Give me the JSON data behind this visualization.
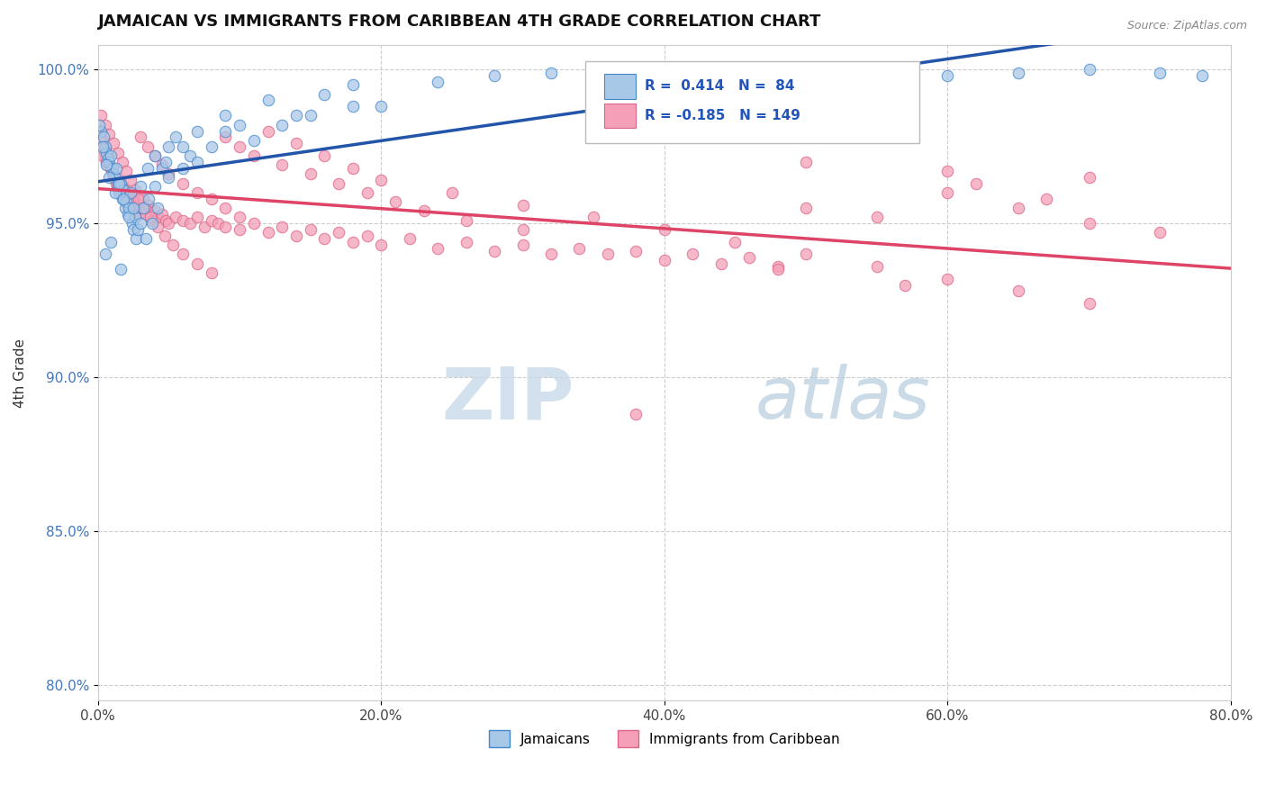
{
  "title": "JAMAICAN VS IMMIGRANTS FROM CARIBBEAN 4TH GRADE CORRELATION CHART",
  "source_text": "Source: ZipAtlas.com",
  "ylabel": "4th Grade",
  "xlim": [
    0.0,
    0.8
  ],
  "ylim": [
    0.795,
    1.008
  ],
  "xticks": [
    0.0,
    0.2,
    0.4,
    0.6,
    0.8
  ],
  "xticklabels": [
    "0.0%",
    "20.0%",
    "40.0%",
    "60.0%",
    "80.0%"
  ],
  "yticks": [
    0.8,
    0.85,
    0.9,
    0.95,
    1.0
  ],
  "yticklabels": [
    "80.0%",
    "85.0%",
    "90.0%",
    "95.0%",
    "100.0%"
  ],
  "blue_color": "#A8C8E8",
  "pink_color": "#F4A0B8",
  "blue_line_color": "#2255AA",
  "pink_line_color": "#DD4466",
  "blue_edge_color": "#4488CC",
  "pink_edge_color": "#DD6688",
  "legend_R_blue": "0.414",
  "legend_N_blue": "84",
  "legend_R_pink": "-0.185",
  "legend_N_pink": "149",
  "title_fontsize": 13,
  "marker_size": 9,
  "blue_scatter_x": [
    0.002,
    0.004,
    0.005,
    0.006,
    0.007,
    0.008,
    0.009,
    0.01,
    0.011,
    0.012,
    0.013,
    0.014,
    0.015,
    0.016,
    0.017,
    0.018,
    0.019,
    0.02,
    0.021,
    0.022,
    0.023,
    0.024,
    0.025,
    0.026,
    0.027,
    0.028,
    0.03,
    0.032,
    0.034,
    0.036,
    0.038,
    0.04,
    0.042,
    0.045,
    0.048,
    0.05,
    0.055,
    0.06,
    0.065,
    0.07,
    0.08,
    0.09,
    0.1,
    0.12,
    0.14,
    0.16,
    0.18,
    0.2,
    0.24,
    0.28,
    0.32,
    0.36,
    0.4,
    0.45,
    0.5,
    0.55,
    0.6,
    0.65,
    0.7,
    0.75,
    0.78,
    0.001,
    0.003,
    0.006,
    0.008,
    0.012,
    0.015,
    0.018,
    0.022,
    0.025,
    0.03,
    0.035,
    0.04,
    0.05,
    0.06,
    0.07,
    0.09,
    0.11,
    0.13,
    0.15,
    0.18,
    0.005,
    0.009,
    0.016
  ],
  "blue_scatter_y": [
    0.98,
    0.978,
    0.975,
    0.973,
    0.971,
    0.97,
    0.972,
    0.968,
    0.966,
    0.965,
    0.968,
    0.962,
    0.96,
    0.963,
    0.958,
    0.961,
    0.955,
    0.957,
    0.953,
    0.955,
    0.96,
    0.95,
    0.948,
    0.952,
    0.945,
    0.948,
    0.95,
    0.955,
    0.945,
    0.958,
    0.95,
    0.962,
    0.955,
    0.968,
    0.97,
    0.975,
    0.978,
    0.968,
    0.972,
    0.98,
    0.975,
    0.985,
    0.982,
    0.99,
    0.985,
    0.992,
    0.995,
    0.988,
    0.996,
    0.998,
    0.999,
    0.997,
    0.998,
    0.996,
    0.999,
    1.0,
    0.998,
    0.999,
    1.0,
    0.999,
    0.998,
    0.982,
    0.975,
    0.969,
    0.965,
    0.96,
    0.963,
    0.958,
    0.952,
    0.955,
    0.962,
    0.968,
    0.972,
    0.965,
    0.975,
    0.97,
    0.98,
    0.977,
    0.982,
    0.985,
    0.988,
    0.94,
    0.944,
    0.935
  ],
  "pink_scatter_x": [
    0.001,
    0.002,
    0.003,
    0.004,
    0.005,
    0.006,
    0.007,
    0.008,
    0.009,
    0.01,
    0.011,
    0.012,
    0.013,
    0.014,
    0.015,
    0.016,
    0.017,
    0.018,
    0.019,
    0.02,
    0.021,
    0.022,
    0.023,
    0.024,
    0.025,
    0.026,
    0.027,
    0.028,
    0.029,
    0.03,
    0.032,
    0.034,
    0.036,
    0.038,
    0.04,
    0.042,
    0.045,
    0.048,
    0.05,
    0.055,
    0.06,
    0.065,
    0.07,
    0.075,
    0.08,
    0.085,
    0.09,
    0.1,
    0.11,
    0.12,
    0.13,
    0.14,
    0.15,
    0.16,
    0.17,
    0.18,
    0.19,
    0.2,
    0.22,
    0.24,
    0.26,
    0.28,
    0.3,
    0.32,
    0.34,
    0.36,
    0.38,
    0.4,
    0.42,
    0.44,
    0.46,
    0.48,
    0.5,
    0.55,
    0.6,
    0.65,
    0.7,
    0.75,
    0.003,
    0.006,
    0.009,
    0.012,
    0.015,
    0.018,
    0.021,
    0.024,
    0.027,
    0.03,
    0.035,
    0.04,
    0.045,
    0.05,
    0.06,
    0.07,
    0.08,
    0.09,
    0.1,
    0.12,
    0.14,
    0.16,
    0.18,
    0.2,
    0.25,
    0.3,
    0.35,
    0.4,
    0.45,
    0.5,
    0.55,
    0.6,
    0.65,
    0.7,
    0.002,
    0.005,
    0.008,
    0.011,
    0.014,
    0.017,
    0.02,
    0.023,
    0.026,
    0.029,
    0.033,
    0.037,
    0.042,
    0.047,
    0.053,
    0.06,
    0.07,
    0.08,
    0.09,
    0.1,
    0.11,
    0.13,
    0.15,
    0.17,
    0.19,
    0.21,
    0.23,
    0.26,
    0.3,
    0.38,
    0.5,
    0.6,
    0.7,
    0.57,
    0.48,
    0.62,
    0.67
  ],
  "pink_scatter_y": [
    0.98,
    0.978,
    0.975,
    0.974,
    0.972,
    0.97,
    0.971,
    0.969,
    0.968,
    0.966,
    0.965,
    0.964,
    0.963,
    0.962,
    0.961,
    0.963,
    0.96,
    0.962,
    0.959,
    0.958,
    0.96,
    0.957,
    0.956,
    0.958,
    0.955,
    0.957,
    0.954,
    0.956,
    0.953,
    0.955,
    0.958,
    0.953,
    0.956,
    0.951,
    0.954,
    0.952,
    0.953,
    0.951,
    0.95,
    0.952,
    0.951,
    0.95,
    0.952,
    0.949,
    0.951,
    0.95,
    0.949,
    0.948,
    0.95,
    0.947,
    0.949,
    0.946,
    0.948,
    0.945,
    0.947,
    0.944,
    0.946,
    0.943,
    0.945,
    0.942,
    0.944,
    0.941,
    0.943,
    0.94,
    0.942,
    0.94,
    0.941,
    0.938,
    0.94,
    0.937,
    0.939,
    0.936,
    0.955,
    0.952,
    0.96,
    0.955,
    0.95,
    0.947,
    0.972,
    0.97,
    0.968,
    0.965,
    0.963,
    0.961,
    0.959,
    0.957,
    0.955,
    0.978,
    0.975,
    0.972,
    0.969,
    0.966,
    0.963,
    0.96,
    0.958,
    0.955,
    0.952,
    0.98,
    0.976,
    0.972,
    0.968,
    0.964,
    0.96,
    0.956,
    0.952,
    0.948,
    0.944,
    0.94,
    0.936,
    0.932,
    0.928,
    0.924,
    0.985,
    0.982,
    0.979,
    0.976,
    0.973,
    0.97,
    0.967,
    0.964,
    0.961,
    0.958,
    0.955,
    0.952,
    0.949,
    0.946,
    0.943,
    0.94,
    0.937,
    0.934,
    0.978,
    0.975,
    0.972,
    0.969,
    0.966,
    0.963,
    0.96,
    0.957,
    0.954,
    0.951,
    0.948,
    0.888,
    0.97,
    0.967,
    0.965,
    0.93,
    0.935,
    0.963,
    0.958
  ]
}
